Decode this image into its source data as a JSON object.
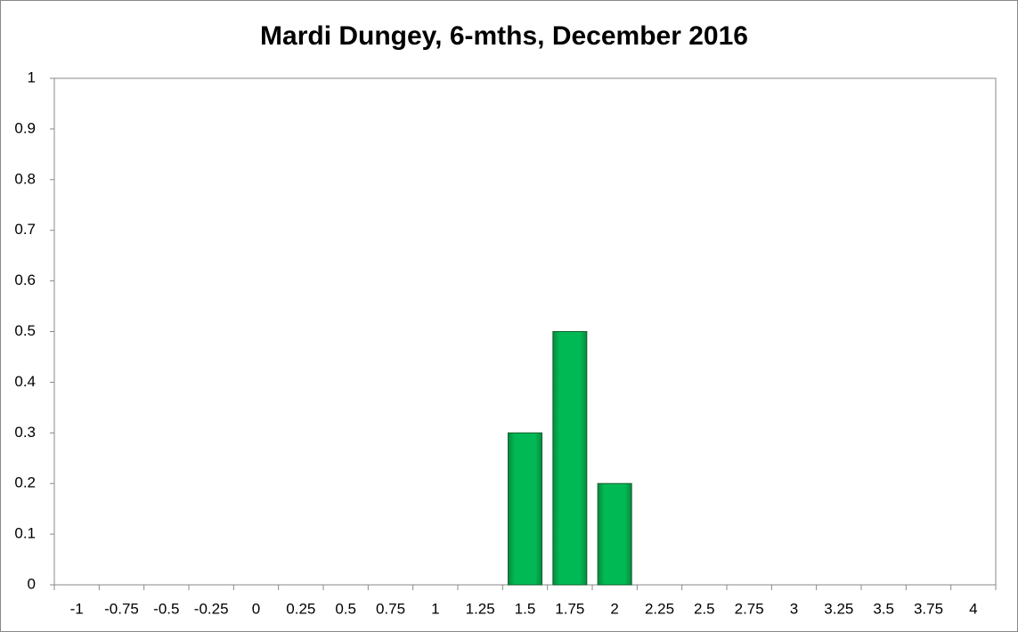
{
  "chart_data": {
    "type": "bar",
    "title": "Mardi Dungey, 6-mths, December 2016",
    "categories": [
      "-1",
      "-0.75",
      "-0.5",
      "-0.25",
      "0",
      "0.25",
      "0.5",
      "0.75",
      "1",
      "1.25",
      "1.5",
      "1.75",
      "2",
      "2.25",
      "2.5",
      "2.75",
      "3",
      "3.25",
      "3.5",
      "3.75",
      "4"
    ],
    "values": [
      0,
      0,
      0,
      0,
      0,
      0,
      0,
      0,
      0,
      0,
      0.3,
      0.5,
      0.2,
      0,
      0,
      0,
      0,
      0,
      0,
      0,
      0
    ],
    "color": "#00b050",
    "ylim": [
      0,
      1
    ],
    "yticks": [
      0,
      0.1,
      0.2,
      0.3,
      0.4,
      0.5,
      0.6,
      0.7,
      0.8,
      0.9,
      1
    ],
    "grid": false
  }
}
